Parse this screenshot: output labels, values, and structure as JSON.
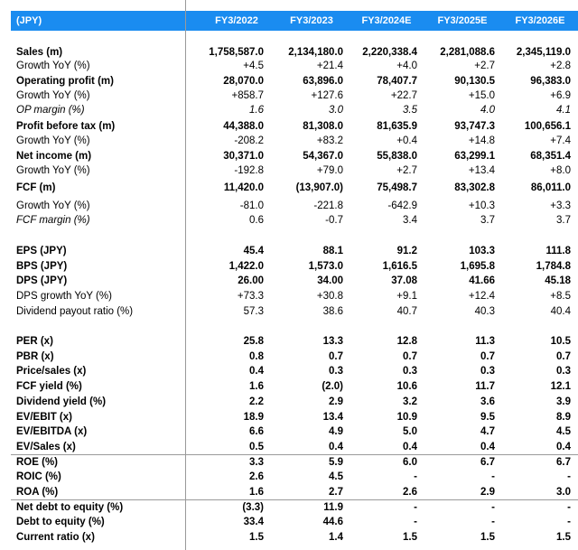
{
  "table": {
    "unit": "(JPY)",
    "columns": [
      "FY3/2022",
      "FY3/2023",
      "FY3/2024E",
      "FY3/2025E",
      "FY3/2026E"
    ],
    "rows": [
      {
        "label": "Sales (m)",
        "values": [
          "1,758,587.0",
          "2,134,180.0",
          "2,220,338.4",
          "2,281,088.6",
          "2,345,119.0"
        ]
      },
      {
        "label": "Growth YoY (%)",
        "values": [
          "+4.5",
          "+21.4",
          "+4.0",
          "+2.7",
          "+2.8"
        ]
      },
      {
        "label": "Operating profit (m)",
        "values": [
          "28,070.0",
          "63,896.0",
          "78,407.7",
          "90,130.5",
          "96,383.0"
        ]
      },
      {
        "label": "Growth YoY (%)",
        "values": [
          "+858.7",
          "+127.6",
          "+22.7",
          "+15.0",
          "+6.9"
        ]
      },
      {
        "label": "OP margin (%)",
        "values": [
          "1.6",
          "3.0",
          "3.5",
          "4.0",
          "4.1"
        ]
      },
      {
        "label": "Profit before tax (m)",
        "values": [
          "44,388.0",
          "81,308.0",
          "81,635.9",
          "93,747.3",
          "100,656.1"
        ]
      },
      {
        "label": "Growth YoY (%)",
        "values": [
          "-208.2",
          "+83.2",
          "+0.4",
          "+14.8",
          "+7.4"
        ]
      },
      {
        "label": "Net income (m)",
        "values": [
          "30,371.0",
          "54,367.0",
          "55,838.0",
          "63,299.1",
          "68,351.4"
        ]
      },
      {
        "label": "Growth YoY (%)",
        "values": [
          "-192.8",
          "+79.0",
          "+2.7",
          "+13.4",
          "+8.0"
        ]
      },
      {
        "label": "FCF (m)",
        "values": [
          "11,420.0",
          "(13,907.0)",
          "75,498.7",
          "83,302.8",
          "86,011.0"
        ]
      },
      {
        "label": "Growth YoY (%)",
        "values": [
          "-81.0",
          "-221.8",
          "-642.9",
          "+10.3",
          "+3.3"
        ]
      },
      {
        "label": "FCF margin (%)",
        "values": [
          "0.6",
          "-0.7",
          "3.4",
          "3.7",
          "3.7"
        ]
      },
      {
        "label": "EPS (JPY)",
        "values": [
          "45.4",
          "88.1",
          "91.2",
          "103.3",
          "111.8"
        ]
      },
      {
        "label": "BPS (JPY)",
        "values": [
          "1,422.0",
          "1,573.0",
          "1,616.5",
          "1,695.8",
          "1,784.8"
        ]
      },
      {
        "label": "DPS (JPY)",
        "values": [
          "26.00",
          "34.00",
          "37.08",
          "41.66",
          "45.18"
        ]
      },
      {
        "label": "DPS growth YoY (%)",
        "values": [
          "+73.3",
          "+30.8",
          "+9.1",
          "+12.4",
          "+8.5"
        ]
      },
      {
        "label": "Dividend payout ratio (%)",
        "values": [
          "57.3",
          "38.6",
          "40.7",
          "40.3",
          "40.4"
        ]
      },
      {
        "label": "PER (x)",
        "values": [
          "25.8",
          "13.3",
          "12.8",
          "11.3",
          "10.5"
        ]
      },
      {
        "label": "PBR (x)",
        "values": [
          "0.8",
          "0.7",
          "0.7",
          "0.7",
          "0.7"
        ]
      },
      {
        "label": "Price/sales (x)",
        "values": [
          "0.4",
          "0.3",
          "0.3",
          "0.3",
          "0.3"
        ]
      },
      {
        "label": "FCF yield (%)",
        "values": [
          "1.6",
          "(2.0)",
          "10.6",
          "11.7",
          "12.1"
        ]
      },
      {
        "label": "Dividend yield (%)",
        "values": [
          "2.2",
          "2.9",
          "3.2",
          "3.6",
          "3.9"
        ]
      },
      {
        "label": "EV/EBIT (x)",
        "values": [
          "18.9",
          "13.4",
          "10.9",
          "9.5",
          "8.9"
        ]
      },
      {
        "label": "EV/EBITDA (x)",
        "values": [
          "6.6",
          "4.9",
          "5.0",
          "4.7",
          "4.5"
        ]
      },
      {
        "label": "EV/Sales (x)",
        "values": [
          "0.5",
          "0.4",
          "0.4",
          "0.4",
          "0.4"
        ]
      },
      {
        "label": "ROE (%)",
        "values": [
          "3.3",
          "5.9",
          "6.0",
          "6.7",
          "6.7"
        ]
      },
      {
        "label": "ROIC (%)",
        "values": [
          "2.6",
          "4.5",
          "-",
          "-",
          "-"
        ]
      },
      {
        "label": "ROA (%)",
        "values": [
          "1.6",
          "2.7",
          "2.6",
          "2.9",
          "3.0"
        ]
      },
      {
        "label": "Net debt to equity (%)",
        "values": [
          "(3.3)",
          "11.9",
          "-",
          "-",
          "-"
        ]
      },
      {
        "label": "Debt to equity (%)",
        "values": [
          "33.4",
          "44.6",
          "-",
          "-",
          "-"
        ]
      },
      {
        "label": "Current ratio (x)",
        "values": [
          "1.5",
          "1.4",
          "1.5",
          "1.5",
          "1.5"
        ]
      }
    ]
  }
}
